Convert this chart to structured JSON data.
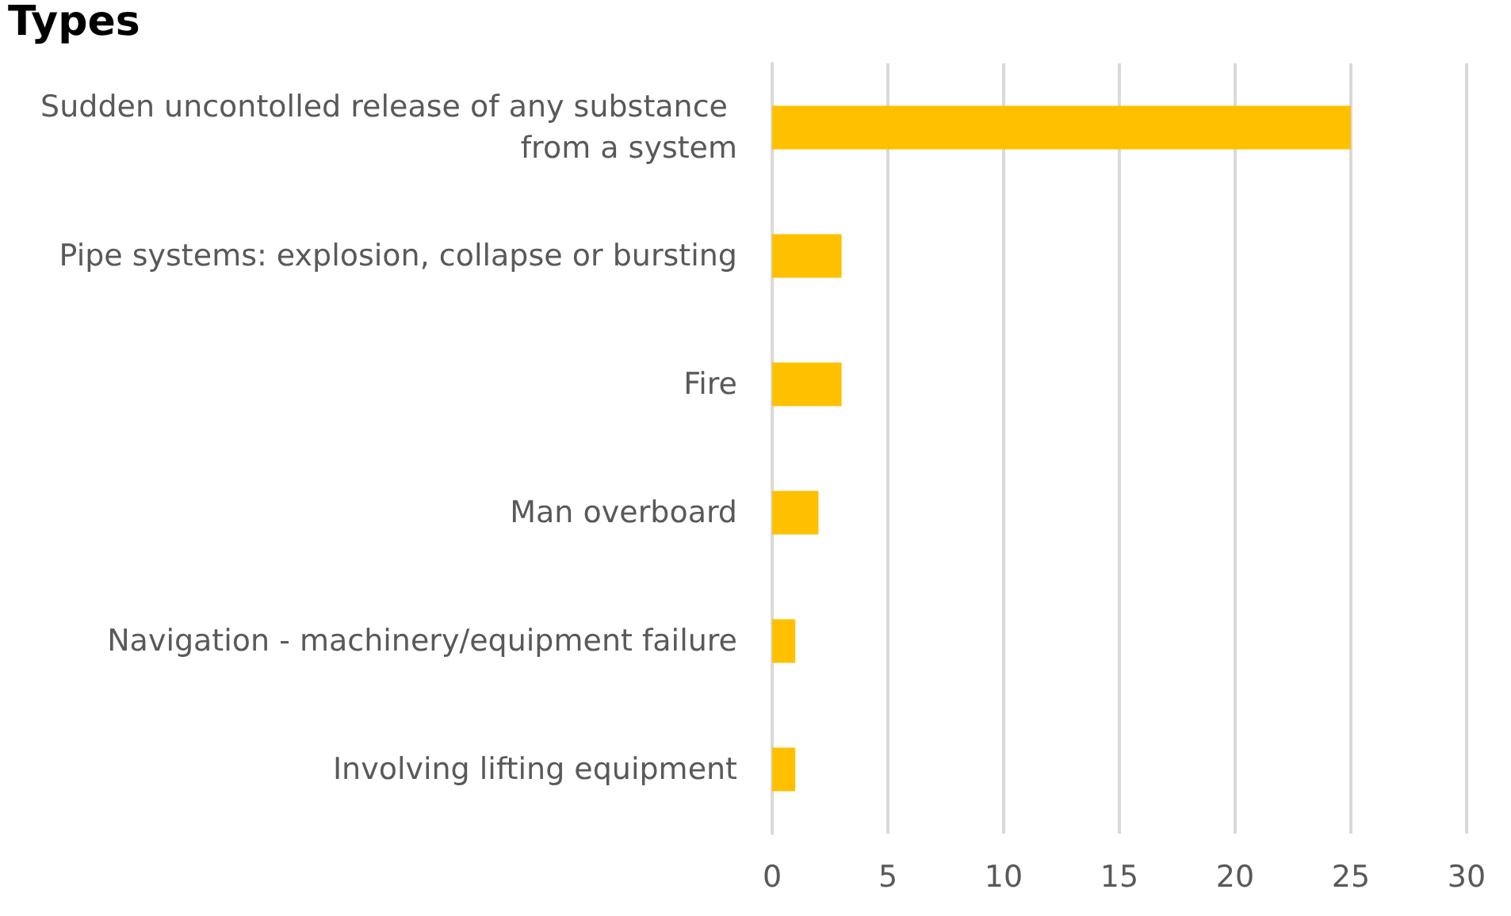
{
  "chart_data": {
    "type": "bar",
    "title": "Types",
    "orientation": "horizontal",
    "categories": [
      "Sudden uncontolled release of any substance from a system",
      "Pipe systems: explosion, collapse or bursting",
      "Fire",
      "Man overboard",
      "Navigation - machinery/equipment failure",
      "Involving lifting equipment"
    ],
    "values": [
      25,
      3,
      3,
      2,
      1,
      1
    ],
    "color": "#ffc000",
    "xlim": [
      0,
      30
    ],
    "xticks": [
      0,
      5,
      10,
      15,
      20,
      25,
      30
    ],
    "grid": "x"
  }
}
